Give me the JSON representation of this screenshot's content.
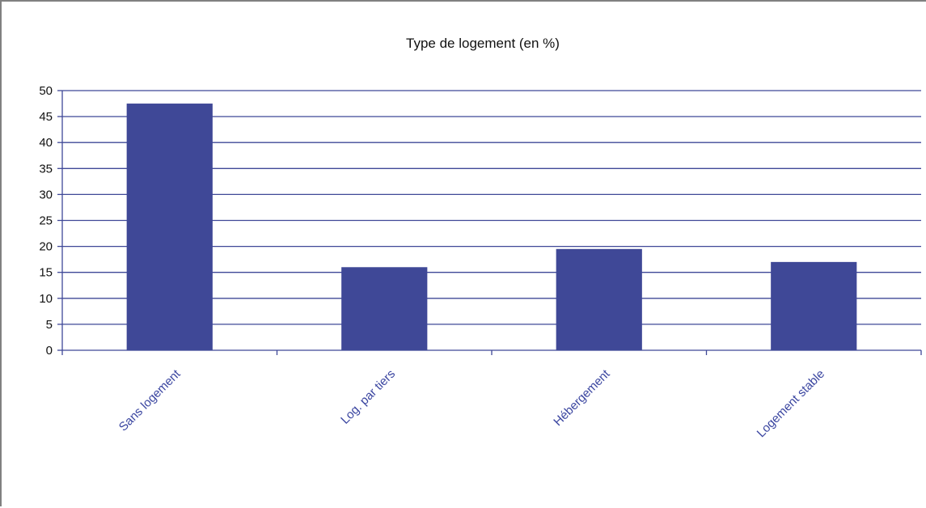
{
  "chart_data": {
    "type": "bar",
    "title": "Type de logement (en %)",
    "categories": [
      "Sans logement",
      "Log. par tiers",
      "Hébergement",
      "Logement stable"
    ],
    "series": [
      {
        "values": [
          47.5,
          16,
          19.5,
          17
        ]
      }
    ],
    "ylim": [
      0,
      50
    ],
    "yticks": [
      0,
      5,
      10,
      15,
      20,
      25,
      30,
      35,
      40,
      45,
      50
    ],
    "grid": true,
    "xlabel": "",
    "ylabel": "",
    "colors": {
      "bar": "#3f4897",
      "grid": "#3f4897",
      "axis_text": "#3a45a0",
      "frame": "#808080"
    }
  }
}
